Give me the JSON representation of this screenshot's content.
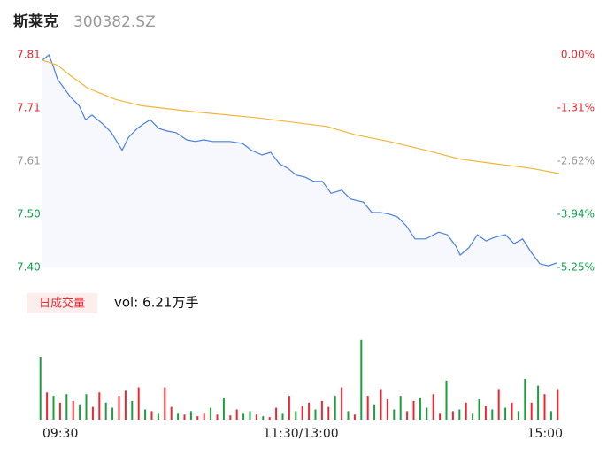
{
  "header": {
    "name": "斯莱克",
    "code": "300382.SZ"
  },
  "chart_data": [
    {
      "type": "line",
      "xlim": [
        0,
        240
      ],
      "xticks": [
        {
          "value": 0,
          "label": "09:30"
        },
        {
          "value": 120,
          "label": "11:30/13:00"
        },
        {
          "value": 240,
          "label": "15:00"
        }
      ],
      "ylim": [
        7.4,
        7.81
      ],
      "yticks": [
        7.81,
        {
          "value": 7.7075,
          "label": "7.71"
        },
        {
          "value": 7.605,
          "label": "7.61"
        },
        {
          "value": 7.5025,
          "label": "7.50"
        },
        {
          "value": 7.4,
          "label": "7.40"
        }
      ],
      "y2lim": [
        -5.25,
        0
      ],
      "y2ticks": [
        {
          "value": 0,
          "label": "0.00%"
        },
        {
          "value": -1.31,
          "label": "-1.31%"
        },
        {
          "value": -2.62,
          "label": "-2.62%"
        },
        {
          "value": -3.94,
          "label": "-3.94%"
        },
        {
          "value": -5.25,
          "label": "-5.25%"
        }
      ],
      "up_color": "#f0262e",
      "flat_color": "#999999",
      "down_color": "#0fa34a",
      "area_color": "#f6f8fd",
      "series": [
        {
          "name": "price",
          "color": "#4a80e3",
          "x": [
            0,
            3,
            5,
            7,
            10,
            13,
            17,
            20,
            23,
            28,
            32,
            37,
            40,
            44,
            47,
            50,
            54,
            58,
            62,
            67,
            71,
            75,
            79,
            87,
            93,
            97,
            102,
            106,
            110,
            114,
            118,
            122,
            126,
            130,
            134,
            139,
            143,
            149,
            153,
            157,
            161,
            165,
            169,
            173,
            178,
            184,
            188,
            192,
            194,
            198,
            202,
            206,
            210,
            215,
            219,
            223,
            227,
            231,
            235,
            239
          ],
          "values": [
            7.8,
            7.81,
            7.788,
            7.763,
            7.746,
            7.729,
            7.712,
            7.685,
            7.694,
            7.677,
            7.66,
            7.626,
            7.651,
            7.668,
            7.677,
            7.685,
            7.668,
            7.663,
            7.66,
            7.646,
            7.643,
            7.646,
            7.643,
            7.643,
            7.639,
            7.626,
            7.617,
            7.622,
            7.6,
            7.591,
            7.578,
            7.574,
            7.566,
            7.566,
            7.543,
            7.549,
            7.532,
            7.526,
            7.506,
            7.506,
            7.503,
            7.497,
            7.48,
            7.455,
            7.455,
            7.468,
            7.463,
            7.441,
            7.424,
            7.438,
            7.463,
            7.451,
            7.458,
            7.463,
            7.446,
            7.455,
            7.429,
            7.407,
            7.403,
            7.409
          ]
        },
        {
          "name": "average",
          "color": "#f4b43a",
          "x": [
            0,
            7,
            13,
            21,
            34,
            46,
            71,
            99,
            132,
            145,
            161,
            178,
            194,
            210,
            227,
            240
          ],
          "values": [
            7.8,
            7.79,
            7.77,
            7.746,
            7.724,
            7.712,
            7.7,
            7.689,
            7.672,
            7.656,
            7.643,
            7.626,
            7.609,
            7.6,
            7.591,
            7.581
          ]
        }
      ]
    },
    {
      "type": "bar",
      "label": "日成交量",
      "summary": "vol: 6.21万手",
      "ylim": [
        0,
        1700
      ],
      "values": [
        1258,
        544,
        476,
        340,
        510,
        374,
        306,
        510,
        255,
        544,
        340,
        238,
        476,
        595,
        374,
        646,
        204,
        170,
        136,
        646,
        255,
        136,
        102,
        170,
        68,
        136,
        238,
        102,
        442,
        85,
        204,
        136,
        170,
        102,
        68,
        51,
        238,
        136,
        476,
        170,
        272,
        340,
        204,
        374,
        255,
        476,
        646,
        170,
        102,
        1598,
        476,
        306,
        612,
        408,
        204,
        476,
        170,
        374,
        442,
        238,
        510,
        136,
        782,
        170,
        204,
        340,
        136,
        408,
        272,
        204,
        612,
        238,
        340,
        170,
        816,
        340,
        680,
        510,
        170,
        612
      ],
      "colors": [
        "#18a03a",
        "#f0262e",
        "#18a03a",
        "#f0262e",
        "#18a03a",
        "#f0262e",
        "#18a03a",
        "#18a03a",
        "#f0262e",
        "#f0262e",
        "#18a03a",
        "#18a03a",
        "#f0262e",
        "#f0262e",
        "#18a03a",
        "#f0262e",
        "#18a03a",
        "#f0262e",
        "#18a03a",
        "#f0262e",
        "#f0262e",
        "#18a03a",
        "#f0262e",
        "#18a03a",
        "#f0262e",
        "#f0262e",
        "#18a03a",
        "#f0262e",
        "#18a03a",
        "#f0262e",
        "#f0262e",
        "#18a03a",
        "#18a03a",
        "#f0262e",
        "#18a03a",
        "#f0262e",
        "#f0262e",
        "#18a03a",
        "#f0262e",
        "#18a03a",
        "#f0262e",
        "#f0262e",
        "#18a03a",
        "#f0262e",
        "#f0262e",
        "#18a03a",
        "#f0262e",
        "#18a03a",
        "#f0262e",
        "#18a03a",
        "#f0262e",
        "#18a03a",
        "#f0262e",
        "#f0262e",
        "#18a03a",
        "#18a03a",
        "#f0262e",
        "#f0262e",
        "#18a03a",
        "#18a03a",
        "#f0262e",
        "#f0262e",
        "#18a03a",
        "#f0262e",
        "#18a03a",
        "#f0262e",
        "#18a03a",
        "#18a03a",
        "#f0262e",
        "#18a03a",
        "#f0262e",
        "#18a03a",
        "#f0262e",
        "#18a03a",
        "#18a03a",
        "#f0262e",
        "#18a03a",
        "#f0262e",
        "#18a03a",
        "#f0262e"
      ]
    }
  ]
}
